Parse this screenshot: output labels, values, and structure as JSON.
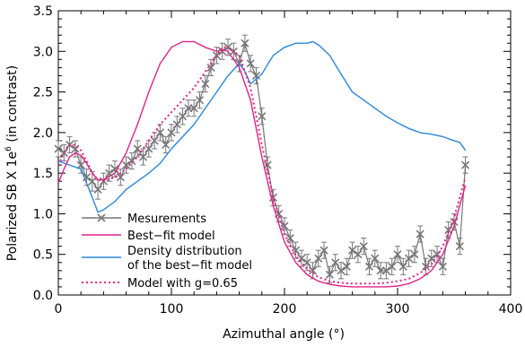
{
  "chart_data": {
    "type": "line",
    "xlabel": "Azimuthal angle (°)",
    "ylabel": "Polarized SB X 1e",
    "ylabel_superscript": "6",
    "ylabel_suffix": " (in contrast)",
    "xlim": [
      0,
      400
    ],
    "ylim": [
      0,
      3.5
    ],
    "xticks": [
      0,
      100,
      200,
      300,
      400
    ],
    "yticks": [
      0.0,
      0.5,
      1.0,
      1.5,
      2.0,
      2.5,
      3.0,
      3.5
    ],
    "xtick_labels": [
      "0",
      "100",
      "200",
      "300",
      "400"
    ],
    "ytick_labels": [
      "0.0",
      "0.5",
      "1.0",
      "1.5",
      "2.0",
      "2.5",
      "3.0",
      "3.5"
    ],
    "grid": false,
    "legend_position": "bottom-left",
    "series": [
      {
        "name": "Mesurements",
        "style": "markers-with-errorbars",
        "color": "#777777",
        "x": [
          0,
          5,
          10,
          15,
          20,
          25,
          30,
          35,
          40,
          45,
          50,
          55,
          60,
          65,
          70,
          75,
          80,
          85,
          90,
          95,
          100,
          105,
          110,
          115,
          120,
          125,
          130,
          135,
          140,
          145,
          150,
          155,
          160,
          165,
          170,
          175,
          180,
          185,
          190,
          195,
          200,
          205,
          210,
          215,
          220,
          225,
          230,
          235,
          240,
          245,
          250,
          255,
          260,
          265,
          270,
          275,
          280,
          285,
          290,
          295,
          300,
          305,
          310,
          315,
          320,
          325,
          330,
          335,
          340,
          345,
          350,
          355,
          360
        ],
        "y": [
          1.8,
          1.75,
          1.85,
          1.8,
          1.6,
          1.45,
          1.4,
          1.3,
          1.4,
          1.5,
          1.55,
          1.45,
          1.6,
          1.65,
          1.8,
          1.7,
          1.8,
          1.9,
          2.0,
          1.85,
          2.0,
          2.1,
          2.2,
          2.3,
          2.3,
          2.4,
          2.6,
          2.8,
          2.95,
          3.0,
          3.05,
          3.0,
          2.85,
          3.1,
          2.85,
          2.7,
          2.2,
          1.6,
          1.2,
          1.0,
          0.85,
          0.7,
          0.55,
          0.45,
          0.4,
          0.3,
          0.45,
          0.55,
          0.25,
          0.4,
          0.3,
          0.35,
          0.55,
          0.5,
          0.6,
          0.35,
          0.45,
          0.3,
          0.3,
          0.35,
          0.5,
          0.35,
          0.45,
          0.5,
          0.75,
          0.35,
          0.45,
          0.5,
          0.35,
          0.8,
          0.9,
          0.6,
          1.6
        ],
        "yerr": [
          0.1,
          0.1,
          0.1,
          0.1,
          0.1,
          0.1,
          0.12,
          0.12,
          0.1,
          0.1,
          0.1,
          0.1,
          0.1,
          0.1,
          0.1,
          0.1,
          0.1,
          0.1,
          0.1,
          0.1,
          0.1,
          0.1,
          0.1,
          0.1,
          0.1,
          0.1,
          0.1,
          0.1,
          0.1,
          0.1,
          0.1,
          0.1,
          0.1,
          0.1,
          0.1,
          0.1,
          0.1,
          0.1,
          0.1,
          0.1,
          0.1,
          0.1,
          0.1,
          0.1,
          0.1,
          0.1,
          0.1,
          0.1,
          0.1,
          0.1,
          0.1,
          0.1,
          0.1,
          0.1,
          0.1,
          0.1,
          0.1,
          0.1,
          0.1,
          0.1,
          0.1,
          0.1,
          0.1,
          0.1,
          0.1,
          0.1,
          0.1,
          0.1,
          0.1,
          0.1,
          0.1,
          0.1,
          0.1
        ]
      },
      {
        "name": "Best−fit model",
        "style": "solid",
        "color": "#e0228a",
        "x": [
          0,
          5,
          10,
          15,
          20,
          25,
          30,
          35,
          40,
          50,
          60,
          70,
          80,
          90,
          100,
          110,
          120,
          130,
          140,
          145,
          150,
          160,
          170,
          180,
          190,
          200,
          210,
          220,
          230,
          240,
          250,
          260,
          270,
          280,
          290,
          300,
          310,
          320,
          330,
          340,
          350,
          360
        ],
        "y": [
          1.38,
          1.55,
          1.7,
          1.75,
          1.72,
          1.62,
          1.5,
          1.42,
          1.42,
          1.5,
          1.75,
          2.1,
          2.5,
          2.85,
          3.05,
          3.12,
          3.12,
          3.05,
          3.0,
          3.02,
          3.0,
          2.8,
          2.4,
          1.7,
          1.1,
          0.65,
          0.4,
          0.25,
          0.17,
          0.13,
          0.11,
          0.1,
          0.1,
          0.1,
          0.1,
          0.11,
          0.14,
          0.2,
          0.3,
          0.5,
          0.85,
          1.35
        ]
      },
      {
        "name": "Density distribution of the best−fit model",
        "legend_lines": [
          "Density distribution",
          "of the best−fit model"
        ],
        "style": "solid",
        "color": "#2b86d9",
        "x": [
          0,
          10,
          20,
          30,
          35,
          40,
          50,
          60,
          70,
          80,
          90,
          100,
          110,
          120,
          130,
          140,
          150,
          160,
          165,
          170,
          180,
          190,
          200,
          210,
          220,
          225,
          230,
          240,
          250,
          260,
          270,
          280,
          290,
          300,
          310,
          320,
          330,
          340,
          350,
          355,
          360
        ],
        "y": [
          1.65,
          1.6,
          1.55,
          1.2,
          1.02,
          1.05,
          1.15,
          1.3,
          1.4,
          1.5,
          1.62,
          1.8,
          1.95,
          2.1,
          2.3,
          2.5,
          2.7,
          2.85,
          2.75,
          2.6,
          2.72,
          2.95,
          3.05,
          3.1,
          3.1,
          3.12,
          3.08,
          2.95,
          2.72,
          2.5,
          2.4,
          2.3,
          2.2,
          2.12,
          2.05,
          2.0,
          1.98,
          1.95,
          1.9,
          1.88,
          1.78
        ]
      },
      {
        "name": "Model with g=0.65",
        "style": "dotted",
        "color": "#e0228a",
        "x": [
          0,
          5,
          10,
          15,
          20,
          25,
          30,
          35,
          40,
          50,
          60,
          70,
          80,
          90,
          100,
          110,
          120,
          130,
          140,
          145,
          150,
          160,
          170,
          180,
          190,
          200,
          210,
          220,
          230,
          240,
          250,
          260,
          270,
          280,
          290,
          300,
          310,
          320,
          330,
          340,
          350,
          360
        ],
        "y": [
          1.6,
          1.75,
          1.85,
          1.85,
          1.78,
          1.65,
          1.5,
          1.42,
          1.4,
          1.45,
          1.55,
          1.7,
          1.9,
          2.1,
          2.25,
          2.4,
          2.55,
          2.75,
          2.95,
          3.05,
          3.05,
          2.95,
          2.55,
          1.85,
          1.2,
          0.75,
          0.48,
          0.32,
          0.22,
          0.17,
          0.15,
          0.14,
          0.14,
          0.14,
          0.15,
          0.17,
          0.2,
          0.27,
          0.38,
          0.6,
          0.95,
          1.45
        ]
      }
    ]
  }
}
